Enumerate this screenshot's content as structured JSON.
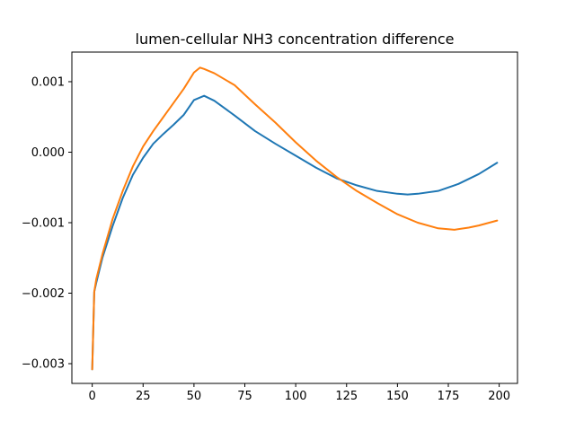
{
  "chart_data": {
    "type": "line",
    "title": "lumen-cellular NH3 concentration difference",
    "xlabel": "",
    "ylabel": "",
    "xlim": [
      -10,
      209
    ],
    "ylim": [
      -0.00328,
      0.00142
    ],
    "grid": false,
    "x_ticks": [
      0,
      25,
      50,
      75,
      100,
      125,
      150,
      175,
      200
    ],
    "x_tick_labels": [
      "0",
      "25",
      "50",
      "75",
      "100",
      "125",
      "150",
      "175",
      "200"
    ],
    "y_ticks": [
      -0.003,
      -0.002,
      -0.001,
      0.0,
      0.001
    ],
    "y_tick_labels": [
      "−0.003",
      "−0.002",
      "−0.001",
      "0.000",
      "0.001"
    ],
    "series": [
      {
        "color": "#1f77b4",
        "x": [
          0,
          1,
          2,
          5,
          10,
          15,
          20,
          25,
          30,
          35,
          40,
          45,
          50,
          55,
          60,
          70,
          80,
          90,
          100,
          110,
          120,
          130,
          140,
          150,
          155,
          160,
          170,
          180,
          190,
          199
        ],
        "y": [
          -0.00308,
          -0.00198,
          -0.00185,
          -0.0015,
          -0.00105,
          -0.00065,
          -0.00032,
          -8e-05,
          0.00012,
          0.00026,
          0.00039,
          0.00053,
          0.00074,
          0.0008,
          0.00073,
          0.00052,
          0.0003,
          0.00012,
          -5e-05,
          -0.00022,
          -0.00037,
          -0.00047,
          -0.00055,
          -0.00059,
          -0.0006,
          -0.00059,
          -0.00055,
          -0.00045,
          -0.00031,
          -0.00015
        ]
      },
      {
        "color": "#ff7f0e",
        "x": [
          0,
          1,
          2,
          5,
          10,
          15,
          20,
          25,
          30,
          35,
          40,
          45,
          50,
          53,
          55,
          60,
          70,
          80,
          90,
          100,
          110,
          120,
          130,
          140,
          150,
          160,
          170,
          178,
          185,
          190,
          199
        ],
        "y": [
          -0.00308,
          -0.00198,
          -0.0018,
          -0.00145,
          -0.00095,
          -0.00055,
          -0.0002,
          8e-05,
          0.0003,
          0.0005,
          0.0007,
          0.0009,
          0.00113,
          0.0012,
          0.00118,
          0.00112,
          0.00095,
          0.00068,
          0.00042,
          0.00014,
          -0.00012,
          -0.00035,
          -0.00055,
          -0.00072,
          -0.00088,
          -0.001,
          -0.00108,
          -0.0011,
          -0.00107,
          -0.00104,
          -0.00097
        ]
      }
    ]
  }
}
